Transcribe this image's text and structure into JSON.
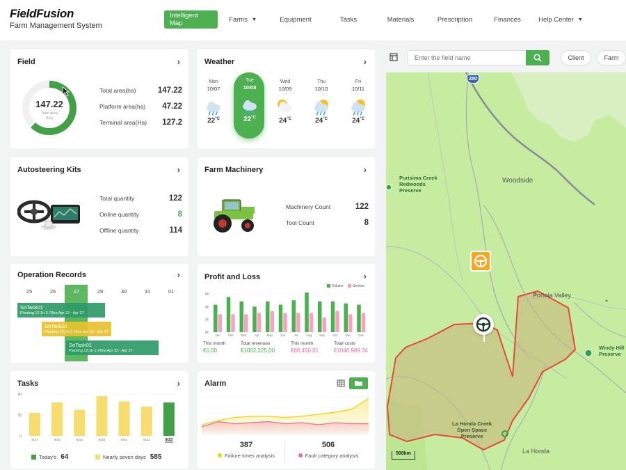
{
  "brand": {
    "title": "FieldFusion",
    "subtitle": "Farm Management System"
  },
  "nav": [
    {
      "label": "Intelligent Map",
      "active": true,
      "dropdown": false
    },
    {
      "label": "Farms",
      "active": false,
      "dropdown": true
    },
    {
      "label": "Equipment",
      "active": false,
      "dropdown": false
    },
    {
      "label": "Tasks",
      "active": false,
      "dropdown": false
    },
    {
      "label": "Materials",
      "active": false,
      "dropdown": false
    },
    {
      "label": "Prescription",
      "active": false,
      "dropdown": false
    },
    {
      "label": "Finances",
      "active": false,
      "dropdown": false
    },
    {
      "label": "Help Center",
      "active": false,
      "dropdown": true
    }
  ],
  "field": {
    "title": "Field",
    "donut_value": "147.22",
    "donut_label": "Total area",
    "donut_unit": "(ha)",
    "donut_fraction": 0.62,
    "stats": [
      {
        "label": "Total area(ha)",
        "value": "147.22"
      },
      {
        "label": "Platform area(ha)",
        "value": "47.22"
      },
      {
        "label": "Terminal area(Ha)",
        "value": "127.2"
      }
    ]
  },
  "weather": {
    "title": "Weather",
    "days": [
      {
        "day": "Mon",
        "date": "10/07",
        "temp": "22",
        "unit": "°C",
        "icon": "rain-cloud-icon",
        "active": false
      },
      {
        "day": "Tue",
        "date": "10/08",
        "temp": "22",
        "unit": "°C",
        "icon": "rain-cloud-icon",
        "active": true
      },
      {
        "day": "Wed",
        "date": "10/09",
        "temp": "24",
        "unit": "°C",
        "icon": "sun-cloud-icon",
        "active": false
      },
      {
        "day": "Thu",
        "date": "10/10",
        "temp": "24",
        "unit": "°C",
        "icon": "sun-rain-icon",
        "active": false
      },
      {
        "day": "Fri",
        "date": "10/11",
        "temp": "24",
        "unit": "°C",
        "icon": "sun-rain-icon",
        "active": false
      }
    ]
  },
  "autosteering": {
    "title": "Autosteering Kits",
    "stats": [
      {
        "label": "Total quantity",
        "value": "122",
        "green": false
      },
      {
        "label": "Online quantity",
        "value": "8",
        "green": true
      },
      {
        "label": "Offline quantity",
        "value": "114",
        "green": false
      }
    ]
  },
  "machinery": {
    "title": "Farm Machinery",
    "stats": [
      {
        "label": "Machinery Count",
        "value": "122"
      },
      {
        "label": "Tool Count",
        "value": "8"
      }
    ]
  },
  "operations": {
    "title": "Operation Records",
    "dates": [
      "25",
      "26",
      "27",
      "29",
      "30",
      "31",
      "01"
    ],
    "tasks": [
      {
        "name": "SoTask01",
        "detail": "Planting  12.1h  2.76ha  Apr 23 - Apr 27",
        "color": "#2e9b67"
      },
      {
        "name": "SoTask01",
        "detail": "Planting  12.1h  2.76ha  Apr 23 - Apr 27",
        "color": "#e8c22e"
      },
      {
        "name": "SoTask01",
        "detail": "Planting  12.1h  2.76ha  Apr 23 - Apr 27",
        "color": "#2e9b67"
      }
    ]
  },
  "profit": {
    "title": "Profit and Loss",
    "legend": [
      "Volume",
      "Service"
    ],
    "summary": [
      {
        "label": "This month",
        "value": "€0.00",
        "color": "#4caf50"
      },
      {
        "label": "Total revenues",
        "value": "€1002,225,00",
        "color": "#4caf50"
      },
      {
        "label": "This month",
        "value": "€66,450.81",
        "color": "#e76f8f"
      },
      {
        "label": "Total costs",
        "value": "€1046,989.34",
        "color": "#e76f8f"
      }
    ]
  },
  "tasks": {
    "title": "Tasks",
    "legend": [
      {
        "label": "Today's",
        "value": "64",
        "color": "#43a047"
      },
      {
        "label": "Nearly seven days",
        "value": "585",
        "color": "#f7dc6f"
      }
    ]
  },
  "alarm": {
    "title": "Alarm",
    "view_icons": [
      "table-icon",
      "chart-icon"
    ],
    "stats": [
      {
        "value": "387",
        "label": "Failure times analysis",
        "color": "#f5d000"
      },
      {
        "value": "506",
        "label": "Fault category analysis",
        "color": "#e76f8f"
      }
    ]
  },
  "map": {
    "search_placeholder": "Enter the field name",
    "buttons": [
      "Client",
      "Farm"
    ],
    "places": [
      {
        "name": "Purisima Creek\nRedwoods\nPreserve"
      },
      {
        "name": "Woodside"
      },
      {
        "name": "Portola Valley"
      },
      {
        "name": "Windy Hill\nPreserve"
      },
      {
        "name": "La Honda Creek\nOpen Space\nPreserve"
      },
      {
        "name": "La Honda"
      }
    ],
    "highway": "280",
    "scale": "500km",
    "colors": {
      "land": "#c5ec9f",
      "field_outline": "#e8473f",
      "field_fill": "#c8b27a"
    }
  },
  "chart_data": [
    {
      "type": "bar",
      "title": "Profit and Loss",
      "categories": [
        "Jan",
        "Feb",
        "Mar",
        "Apr",
        "May",
        "Jun",
        "Jul",
        "Aug",
        "Sep",
        "Oct",
        "Nov",
        "Dec"
      ],
      "yticks": [
        "6k",
        "4k",
        "2k",
        "0k"
      ],
      "ylim": [
        0,
        6
      ],
      "series": [
        {
          "name": "Volume",
          "color": "#4caf50",
          "values": [
            4.3,
            5.5,
            4.8,
            4.0,
            4.8,
            4.3,
            5.0,
            6.2,
            4.8,
            4.8,
            4.5,
            4.3
          ]
        },
        {
          "name": "Service",
          "color": "#f4a4bd",
          "values": [
            2.8,
            2.8,
            2.8,
            3.0,
            3.3,
            3.0,
            3.0,
            3.0,
            2.3,
            3.3,
            2.8,
            3.0
          ]
        }
      ]
    },
    {
      "type": "bar",
      "title": "Tasks",
      "categories": [
        "9/17",
        "9/18",
        "9/15",
        "9/20",
        "9/21",
        "9/22",
        "9/23"
      ],
      "yticks": [
        "40",
        "20",
        "0"
      ],
      "ylim": [
        0,
        40
      ],
      "series": [
        {
          "name": "Tasks",
          "values": [
            22,
            32,
            25,
            38,
            33,
            28,
            32
          ]
        }
      ],
      "highlight_index": 6
    },
    {
      "type": "area",
      "title": "Alarm",
      "x": [
        0,
        1,
        2,
        3,
        4,
        5,
        6,
        7,
        8,
        9,
        10
      ],
      "series": [
        {
          "name": "Failure times analysis",
          "color": "#f5d000",
          "values": [
            10,
            14,
            17,
            18,
            18,
            17,
            18,
            20,
            22,
            25,
            35
          ]
        },
        {
          "name": "Fault category analysis",
          "color": "#e76f8f",
          "values": [
            8,
            13,
            11,
            12,
            13,
            11,
            12,
            10,
            12,
            11,
            11
          ]
        }
      ]
    }
  ]
}
